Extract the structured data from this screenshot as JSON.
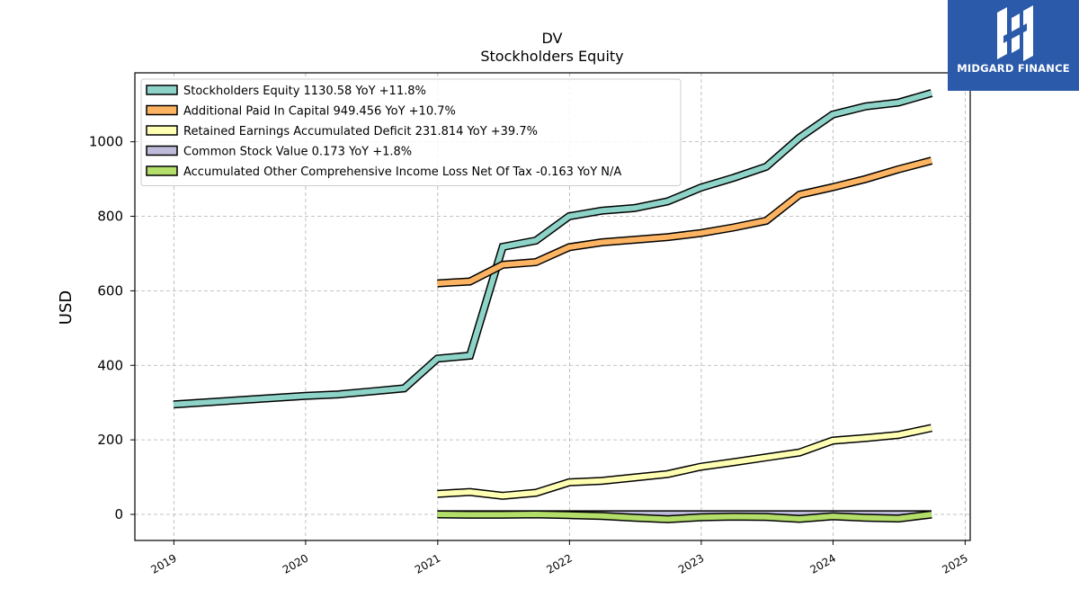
{
  "chart_data": {
    "type": "line",
    "title": "DV",
    "subtitle": "Stockholders  Equity",
    "ylabel": "USD",
    "xlabel": "",
    "ylim": [
      -70,
      1185
    ],
    "xlim": [
      "2018-09-15",
      "2025-01-15"
    ],
    "yticks": [
      "0",
      "200",
      "400",
      "600",
      "800",
      "1000"
    ],
    "xticks": [
      {
        "label": "2019",
        "date": "2019-01-01"
      },
      {
        "label": "2020",
        "date": "2020-01-01"
      },
      {
        "label": "2021",
        "date": "2021-01-01"
      },
      {
        "label": "2022",
        "date": "2022-01-01"
      },
      {
        "label": "2023",
        "date": "2023-01-01"
      },
      {
        "label": "2024",
        "date": "2024-01-01"
      },
      {
        "label": "2025",
        "date": "2025-01-01"
      }
    ],
    "grid": true,
    "legend_position": "top-left",
    "series": [
      {
        "name": "Stockholders Equity",
        "legend": "Stockholders Equity  1130.58 YoY +11.8%",
        "color": "#8dd3c7",
        "points": [
          [
            "2018-12-31",
            295
          ],
          [
            "2019-12-31",
            318
          ],
          [
            "2020-03-31",
            322
          ],
          [
            "2020-06-30",
            330
          ],
          [
            "2020-09-30",
            338
          ],
          [
            "2020-12-31",
            418
          ],
          [
            "2021-03-31",
            426
          ],
          [
            "2021-06-30",
            718
          ],
          [
            "2021-09-30",
            735
          ],
          [
            "2021-12-31",
            800
          ],
          [
            "2022-03-31",
            815
          ],
          [
            "2022-06-30",
            822
          ],
          [
            "2022-09-30",
            840
          ],
          [
            "2022-12-31",
            877
          ],
          [
            "2023-03-31",
            903
          ],
          [
            "2023-06-30",
            933
          ],
          [
            "2023-09-30",
            1011
          ],
          [
            "2023-12-31",
            1073
          ],
          [
            "2024-03-31",
            1095
          ],
          [
            "2024-06-30",
            1105
          ],
          [
            "2024-09-30",
            1130.58
          ]
        ]
      },
      {
        "name": "Additional Paid In Capital",
        "legend": "Additional Paid In Capital  949.456 YoY +10.7%",
        "color": "#fdb462",
        "points": [
          [
            "2020-12-31",
            620
          ],
          [
            "2021-03-31",
            625
          ],
          [
            "2021-06-30",
            670
          ],
          [
            "2021-09-30",
            677
          ],
          [
            "2021-12-31",
            717
          ],
          [
            "2022-03-31",
            730
          ],
          [
            "2022-06-30",
            737
          ],
          [
            "2022-09-30",
            744
          ],
          [
            "2022-12-31",
            755
          ],
          [
            "2023-03-31",
            770
          ],
          [
            "2023-06-30",
            788
          ],
          [
            "2023-09-30",
            858
          ],
          [
            "2023-12-31",
            878
          ],
          [
            "2024-03-31",
            900
          ],
          [
            "2024-06-30",
            926
          ],
          [
            "2024-09-30",
            949.456
          ]
        ]
      },
      {
        "name": "Retained Earnings Accumulated Deficit",
        "legend": "Retained Earnings Accumulated Deficit  231.814 YoY +39.7%",
        "color": "#ffffb3",
        "points": [
          [
            "2020-12-31",
            55
          ],
          [
            "2021-03-31",
            60
          ],
          [
            "2021-06-30",
            50
          ],
          [
            "2021-09-30",
            58
          ],
          [
            "2021-12-31",
            86
          ],
          [
            "2022-03-31",
            90
          ],
          [
            "2022-06-30",
            99
          ],
          [
            "2022-09-30",
            108
          ],
          [
            "2022-12-31",
            128
          ],
          [
            "2023-03-31",
            140
          ],
          [
            "2023-06-30",
            153
          ],
          [
            "2023-09-30",
            166
          ],
          [
            "2023-12-31",
            198
          ],
          [
            "2024-03-31",
            205
          ],
          [
            "2024-06-30",
            213
          ],
          [
            "2024-09-30",
            231.814
          ]
        ]
      },
      {
        "name": "Common Stock Value",
        "legend": "Common Stock Value  0.173 YoY +1.8%",
        "color": "#bebada",
        "fill": true,
        "points": [
          [
            "2020-12-31",
            0.16
          ],
          [
            "2021-03-31",
            0.16
          ],
          [
            "2021-06-30",
            0.16
          ],
          [
            "2021-09-30",
            0.16
          ],
          [
            "2021-12-31",
            0.17
          ],
          [
            "2022-03-31",
            0.17
          ],
          [
            "2022-06-30",
            0.17
          ],
          [
            "2022-09-30",
            0.17
          ],
          [
            "2022-12-31",
            0.17
          ],
          [
            "2023-03-31",
            0.17
          ],
          [
            "2023-06-30",
            0.17
          ],
          [
            "2023-09-30",
            0.17
          ],
          [
            "2023-12-31",
            0.17
          ],
          [
            "2024-03-31",
            0.17
          ],
          [
            "2024-06-30",
            0.17
          ],
          [
            "2024-09-30",
            0.173
          ]
        ]
      },
      {
        "name": "Accumulated Other Comprehensive Income Loss Net Of Tax",
        "legend": "Accumulated Other Comprehensive Income Loss Net Of Tax  -0.163 YoY N/A",
        "color": "#b3de69",
        "points": [
          [
            "2020-12-31",
            0
          ],
          [
            "2021-03-31",
            -1
          ],
          [
            "2021-06-30",
            -1
          ],
          [
            "2021-09-30",
            0
          ],
          [
            "2021-12-31",
            -2
          ],
          [
            "2022-03-31",
            -4
          ],
          [
            "2022-06-30",
            -9
          ],
          [
            "2022-09-30",
            -13
          ],
          [
            "2022-12-31",
            -8
          ],
          [
            "2023-03-31",
            -6
          ],
          [
            "2023-06-30",
            -7
          ],
          [
            "2023-09-30",
            -12
          ],
          [
            "2023-12-31",
            -5
          ],
          [
            "2024-03-31",
            -9
          ],
          [
            "2024-06-30",
            -11
          ],
          [
            "2024-09-30",
            -0.163
          ]
        ]
      }
    ]
  },
  "logo": {
    "text": "MIDGARD FINANCE",
    "color": "#2a5aa9"
  }
}
